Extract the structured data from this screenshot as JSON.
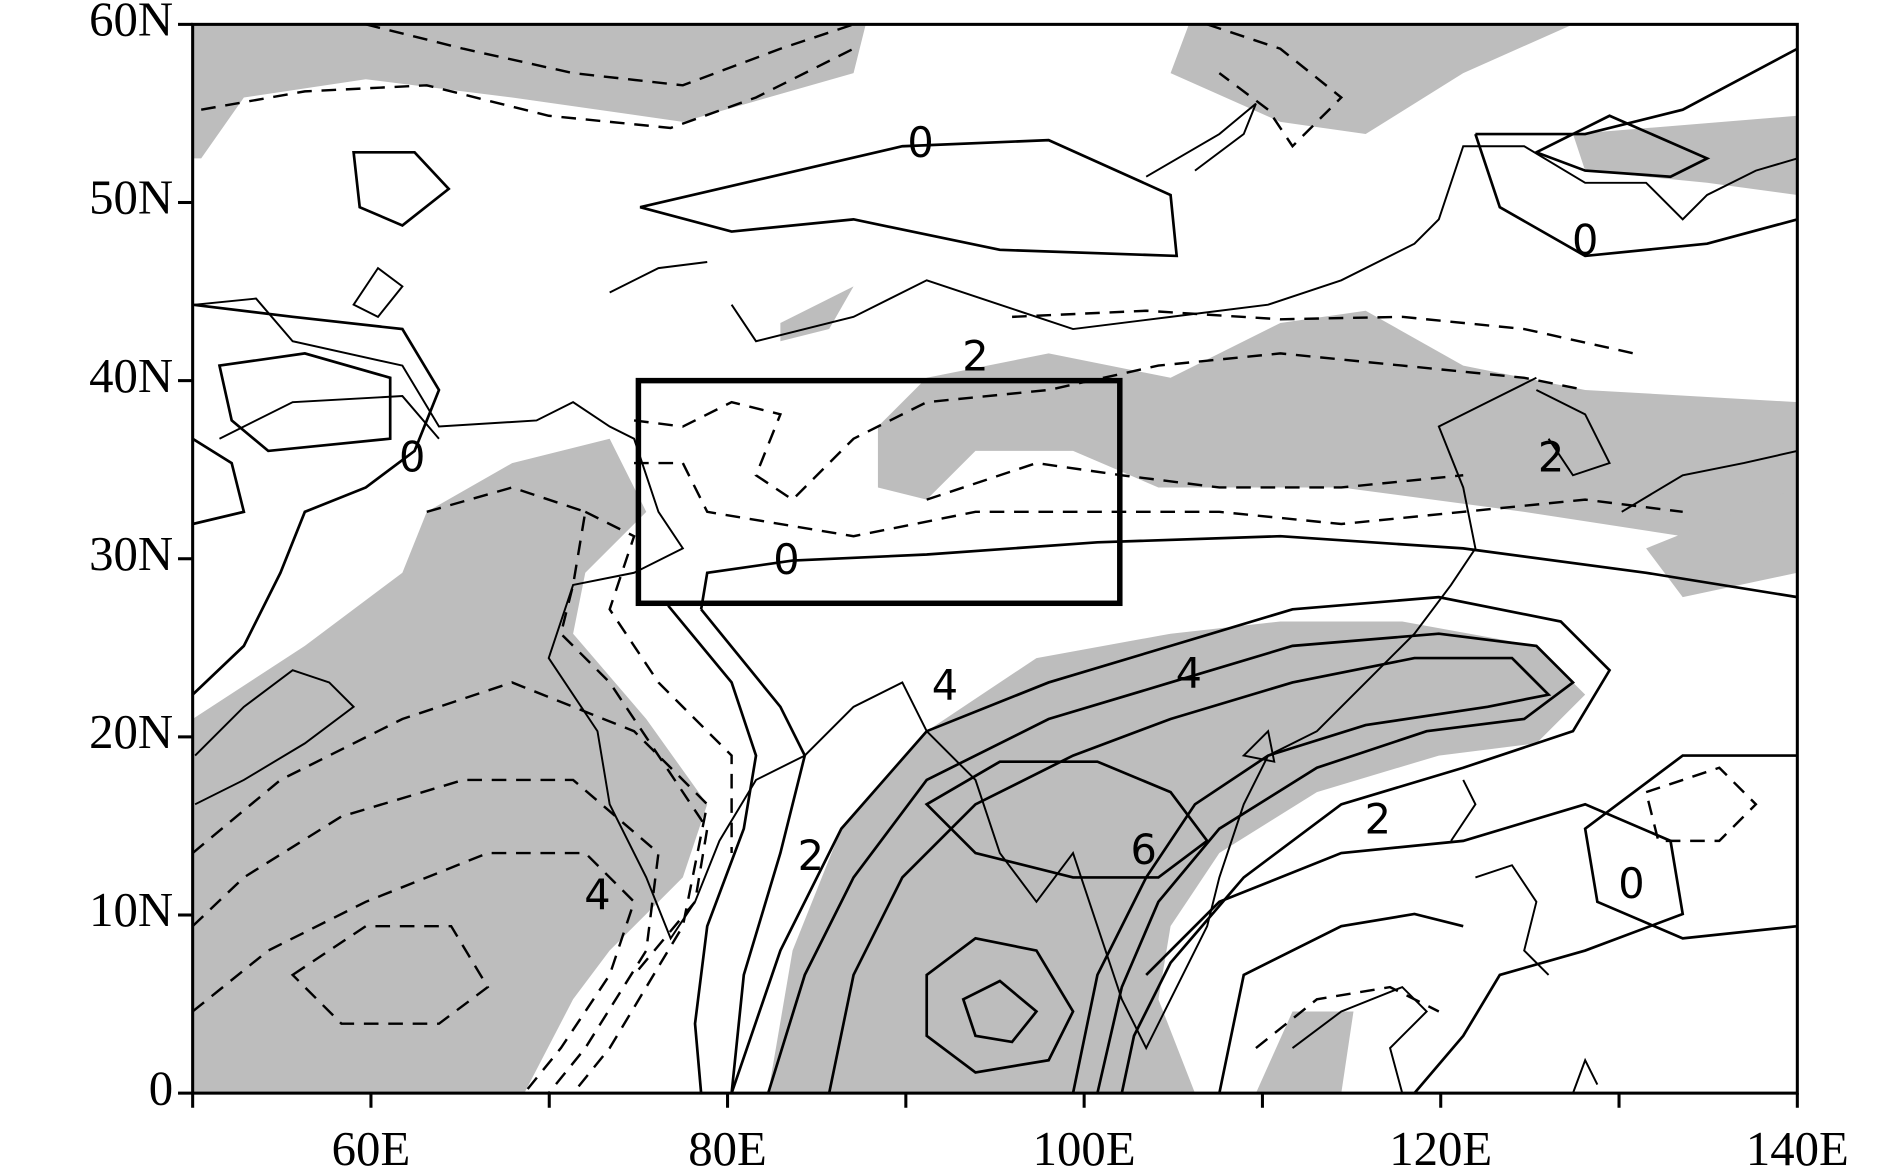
{
  "map": {
    "lon_range": [
      50,
      140
    ],
    "lat_range": [
      0,
      60
    ],
    "lon_ticks": [
      {
        "value": 60,
        "label": "60E"
      },
      {
        "value": 80,
        "label": "80E"
      },
      {
        "value": 100,
        "label": "100E"
      },
      {
        "value": 120,
        "label": "120E"
      },
      {
        "value": 140,
        "label": "140E"
      }
    ],
    "lon_minor_ticks": [
      50,
      70,
      90,
      110,
      130
    ],
    "lat_ticks": [
      {
        "value": 0,
        "label": "0"
      },
      {
        "value": 10,
        "label": "10N"
      },
      {
        "value": 20,
        "label": "20N"
      },
      {
        "value": 30,
        "label": "30N"
      },
      {
        "value": 40,
        "label": "40N"
      },
      {
        "value": 50,
        "label": "50N"
      },
      {
        "value": 60,
        "label": "60N"
      }
    ],
    "box": {
      "lon": [
        75,
        102
      ],
      "lat": [
        27.5,
        40
      ]
    },
    "contour_labels": [
      0,
      0,
      2,
      0,
      2,
      0,
      4,
      4,
      2,
      2,
      6,
      0,
      4
    ]
  }
}
